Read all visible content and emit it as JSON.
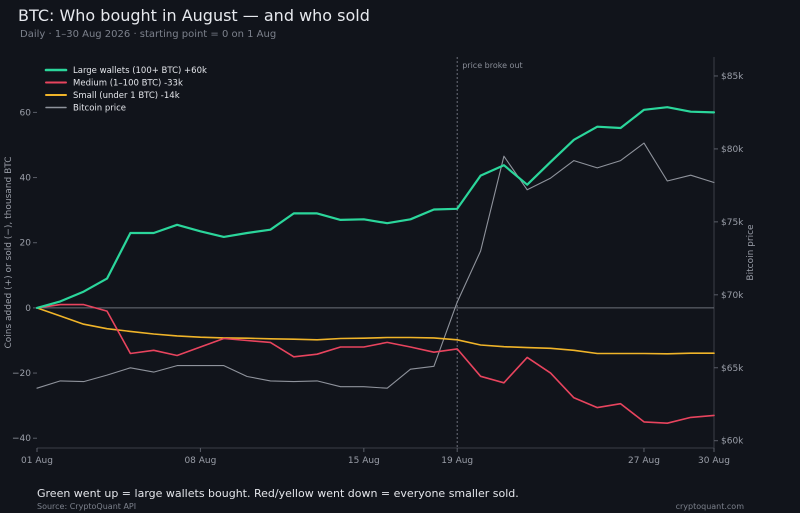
{
  "header": {
    "title": "BTC: Who bought in August — and who sold",
    "subtitle": "Daily  ·  1–30 Aug 2026  ·  starting point = 0 on 1 Aug"
  },
  "footer": {
    "note": "Green went up = large wallets bought. Red/yellow went down = everyone smaller sold.",
    "source": "Source: CryptoQuant API",
    "watermark": "cryptoquant.com"
  },
  "colors": {
    "background": "#11141b",
    "large": "#2bd69b",
    "medium": "#e8445e",
    "small": "#f0b429",
    "price": "#8f939c",
    "zero_line": "#6c707a",
    "event_line": "#6c707a"
  },
  "chart_data": {
    "type": "line",
    "x_tick_labels": [
      "01 Aug",
      "08 Aug",
      "15 Aug",
      "19 Aug",
      "27 Aug",
      "30 Aug"
    ],
    "x_tick_days": [
      1,
      8,
      15,
      19,
      27,
      30
    ],
    "xlim": [
      1,
      30
    ],
    "ylabel": "Coins added  (+)  or sold  (−),  thousand BTC",
    "y2label": "Bitcoin price",
    "ylim": [
      -43,
      77
    ],
    "y_ticks": [
      -40,
      -20,
      0,
      20,
      40,
      60
    ],
    "y_tick_labels": [
      "−40",
      "−20",
      "0",
      "20",
      "40",
      "60"
    ],
    "y2lim": [
      59500,
      86300
    ],
    "y2_ticks": [
      60000,
      65000,
      70000,
      75000,
      80000,
      85000
    ],
    "y2_tick_labels": [
      "$60k",
      "$65k",
      "$70k",
      "$75k",
      "$80k",
      "$85k"
    ],
    "event": {
      "day": 19,
      "label": "price broke out"
    },
    "legend_position": "top-left",
    "grid": false,
    "series": [
      {
        "name": "Large wallets (100+ BTC)",
        "summary": "+60k",
        "axis": "left",
        "color_key": "large",
        "width": 2.2,
        "x": [
          1,
          2,
          3,
          4,
          5,
          6,
          7,
          8,
          9,
          10,
          11,
          12,
          13,
          14,
          15,
          16,
          17,
          18,
          19,
          20,
          21,
          22,
          23,
          24,
          25,
          26,
          27,
          28,
          29,
          30
        ],
        "values": [
          0,
          2,
          5,
          9,
          23,
          23,
          25.5,
          23.5,
          21.8,
          23,
          24,
          29,
          29,
          27,
          27.2,
          26,
          27.2,
          30.2,
          30.4,
          40.6,
          43.8,
          37.8,
          44.8,
          51.6,
          55.6,
          55.2,
          60.8,
          61.6,
          60.2,
          60
        ]
      },
      {
        "name": "Medium (1–100 BTC)",
        "summary": "-33k",
        "axis": "left",
        "color_key": "medium",
        "width": 1.6,
        "x": [
          1,
          2,
          3,
          4,
          5,
          6,
          7,
          8,
          9,
          10,
          11,
          12,
          13,
          14,
          15,
          16,
          17,
          18,
          19,
          20,
          21,
          22,
          23,
          24,
          25,
          26,
          27,
          28,
          29,
          30
        ],
        "values": [
          0,
          1,
          1,
          -1,
          -14,
          -13,
          -14.6,
          -12,
          -9.4,
          -10,
          -10.6,
          -15,
          -14.2,
          -12,
          -12,
          -10.6,
          -12,
          -13.6,
          -12.6,
          -21,
          -23,
          -15.2,
          -20,
          -27.6,
          -30.6,
          -29.4,
          -35,
          -35.4,
          -33.6,
          -33
        ]
      },
      {
        "name": "Small (under 1 BTC)",
        "summary": "-14k",
        "axis": "left",
        "color_key": "small",
        "width": 1.6,
        "x": [
          1,
          2,
          3,
          4,
          5,
          6,
          7,
          8,
          9,
          10,
          11,
          12,
          13,
          14,
          15,
          16,
          17,
          18,
          19,
          20,
          21,
          22,
          23,
          24,
          25,
          26,
          27,
          28,
          29,
          30
        ],
        "values": [
          0,
          -2.5,
          -5,
          -6.4,
          -7.2,
          -8,
          -8.6,
          -9,
          -9.2,
          -9.3,
          -9.5,
          -9.6,
          -9.8,
          -9.4,
          -9.3,
          -9.1,
          -9.1,
          -9.2,
          -9.8,
          -11.4,
          -11.9,
          -12.2,
          -12.4,
          -13,
          -14,
          -14,
          -14,
          -14.1,
          -13.9,
          -13.9
        ]
      },
      {
        "name": "Bitcoin price",
        "summary": "",
        "axis": "right",
        "color_key": "price",
        "width": 1.1,
        "x": [
          1,
          2,
          3,
          4,
          5,
          6,
          7,
          8,
          9,
          10,
          11,
          12,
          13,
          14,
          15,
          16,
          17,
          18,
          19,
          20,
          21,
          22,
          23,
          24,
          25,
          26,
          27,
          28,
          29,
          30
        ],
        "values": [
          63600,
          64100,
          64050,
          64500,
          65000,
          64700,
          65150,
          65150,
          65150,
          64400,
          64100,
          64050,
          64100,
          63700,
          63700,
          63600,
          64900,
          65100,
          69500,
          73000,
          79500,
          77200,
          78000,
          79200,
          78700,
          79200,
          80400,
          77800,
          78200,
          77700
        ]
      }
    ]
  }
}
